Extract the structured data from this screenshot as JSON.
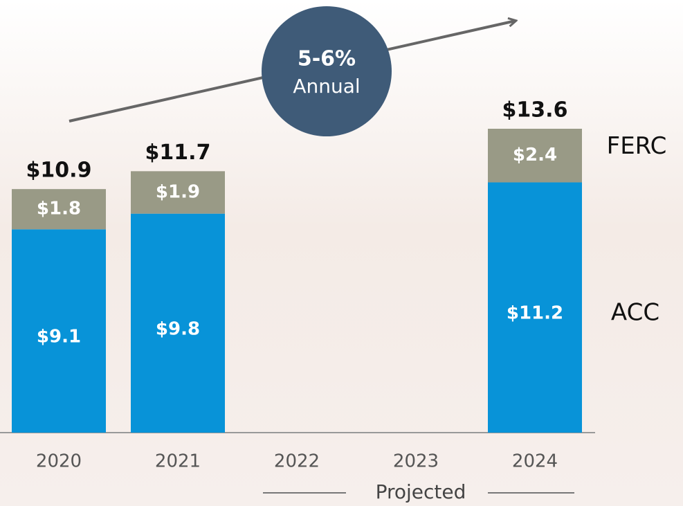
{
  "chart_data": {
    "type": "stacked-bar",
    "categories": [
      "2020",
      "2021",
      "2022",
      "2023",
      "2024"
    ],
    "series": [
      {
        "name": "ACC",
        "color": "#0893d8",
        "values": [
          9.1,
          9.8,
          null,
          null,
          11.2
        ],
        "value_labels": [
          "$9.1",
          "$9.8",
          null,
          null,
          "$11.2"
        ]
      },
      {
        "name": "FERC",
        "color": "#999a86",
        "values": [
          1.8,
          1.9,
          null,
          null,
          2.4
        ],
        "value_labels": [
          "$1.8",
          "$1.9",
          null,
          null,
          "$2.4"
        ]
      }
    ],
    "totals": [
      10.9,
      11.7,
      null,
      null,
      13.6
    ],
    "total_labels": [
      "$10.9",
      "$11.7",
      null,
      null,
      "$13.6"
    ],
    "annotation": {
      "rate": "5-6%",
      "period": "Annual"
    },
    "projected_label": "Projected"
  }
}
